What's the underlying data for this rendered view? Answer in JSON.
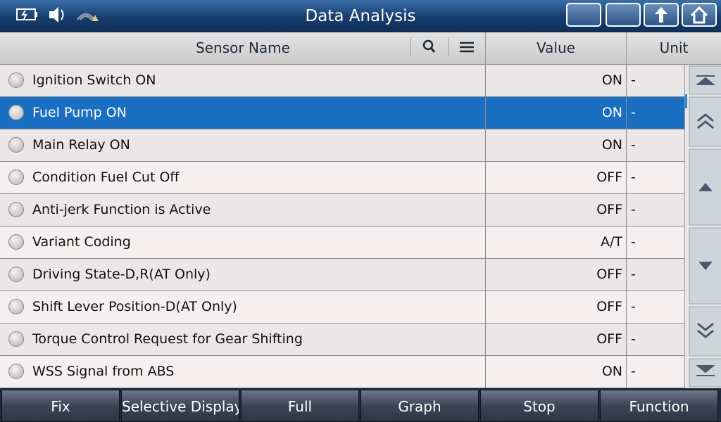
{
  "header": {
    "title": "Data Analysis"
  },
  "table": {
    "columns": [
      "Sensor Name",
      "Value",
      "Unit"
    ],
    "selected_row": 1,
    "rows": [
      [
        "Ignition Switch ON",
        "ON",
        "-"
      ],
      [
        "Fuel Pump ON",
        "ON",
        "-"
      ],
      [
        "Main Relay ON",
        "ON",
        "-"
      ],
      [
        "Condition Fuel Cut Off",
        "OFF",
        "-"
      ],
      [
        "Anti-jerk Function is Active",
        "OFF",
        "-"
      ],
      [
        "Variant Coding",
        "A/T",
        "-"
      ],
      [
        "Driving State-D,R(AT Only)",
        "OFF",
        "-"
      ],
      [
        "Shift Lever Position-D(AT Only)",
        "OFF",
        "-"
      ],
      [
        "Torque Control Request for Gear Shifting",
        "OFF",
        "-"
      ],
      [
        "WSS Signal from ABS",
        "ON",
        "-"
      ]
    ]
  },
  "footer": {
    "buttons": [
      "Fix",
      "Selective Display",
      "Full",
      "Graph",
      "Stop",
      "Function"
    ]
  }
}
